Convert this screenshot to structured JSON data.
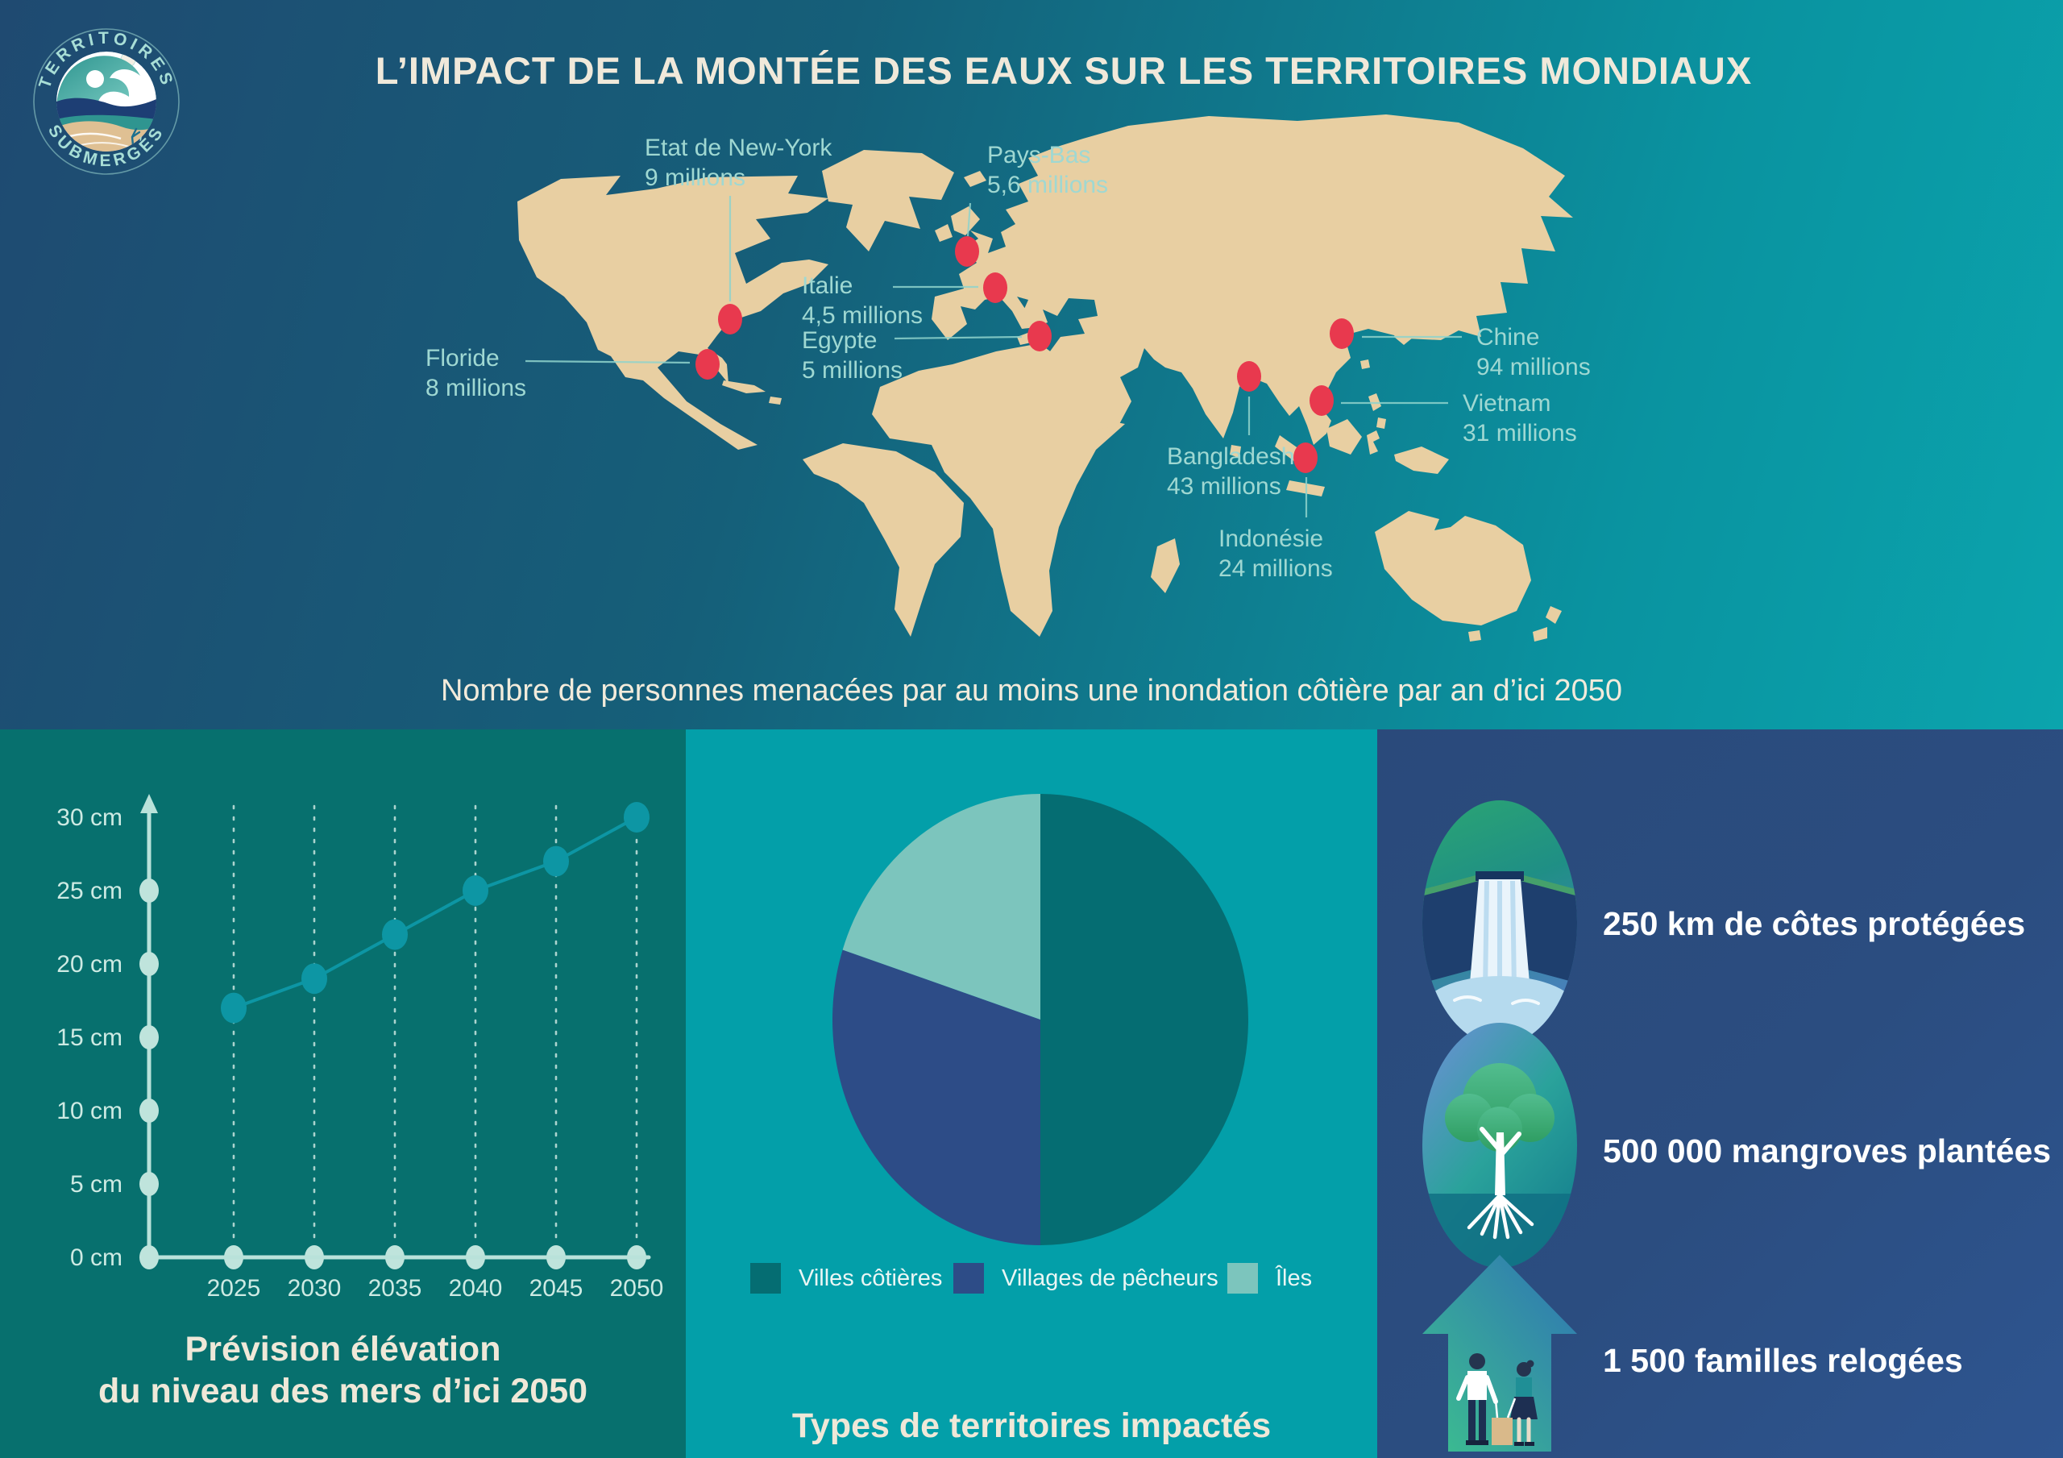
{
  "logo": {
    "arc_top": "TERRITOIRES",
    "arc_bottom": "SUBMERGÉS"
  },
  "header": {
    "title": "L’IMPACT DE LA MONTÉE DES EAUX SUR LES TERRITOIRES MONDIAUX",
    "subtitle": "Nombre de personnes menacées par au moins une inondation côtière par an d’ici 2050"
  },
  "map": {
    "locations": [
      {
        "id": "new-york",
        "name": "Etat de New-York",
        "value": "9 millions"
      },
      {
        "id": "pays-bas",
        "name": "Pays-Bas",
        "value": "5,6 millions"
      },
      {
        "id": "italie",
        "name": "Italie",
        "value": "4,5 millions"
      },
      {
        "id": "egypte",
        "name": "Egypte",
        "value": "5 millions"
      },
      {
        "id": "floride",
        "name": "Floride",
        "value": "8 millions"
      },
      {
        "id": "chine",
        "name": "Chine",
        "value": "94 millions"
      },
      {
        "id": "vietnam",
        "name": "Vietnam",
        "value": "31 millions"
      },
      {
        "id": "bangladesh",
        "name": "Bangladesh",
        "value": "43 millions"
      },
      {
        "id": "indonesie",
        "name": "Indonésie",
        "value": "24 millions"
      }
    ]
  },
  "chart_data": [
    {
      "type": "line",
      "title": "Prévision élévation du niveau des mers d’ici 2050",
      "title_lines": [
        "Prévision élévation",
        "du niveau des mers d’ici 2050"
      ],
      "categories": [
        "2025",
        "2030",
        "2035",
        "2040",
        "2045",
        "2050"
      ],
      "values": [
        17,
        19,
        22,
        25,
        27,
        30
      ],
      "unit": "cm",
      "ylim": [
        0,
        30
      ],
      "ytick_step": 5,
      "ytick_labels": [
        "0 cm",
        "5 cm",
        "10 cm",
        "15 cm",
        "20 cm",
        "25 cm",
        "30 cm"
      ],
      "grid": "dashed-vertical",
      "line_color": "#0d96a4",
      "axis_color": "#b9e2da"
    },
    {
      "type": "pie",
      "title": "Types de territoires impactés",
      "labels": [
        "Villes côtières",
        "Villages de pêcheurs",
        "Îles"
      ],
      "values": [
        50,
        30,
        20
      ],
      "colors": [
        "#056d72",
        "#2d4c87",
        "#7cc5bd"
      ],
      "legend_position": "bottom"
    }
  ],
  "stats": [
    {
      "icon": "dam-icon",
      "label": "250 km de côtes protégées"
    },
    {
      "icon": "mangrove-icon",
      "label": "500 000 mangroves plantées"
    },
    {
      "icon": "house-icon",
      "label": "1 500 familles relogées"
    }
  ],
  "colors": {
    "background_left": "#1f4a71",
    "background_right": "#0ba4ad",
    "land": "#e8cfa2",
    "marker_red": "#e8394e",
    "label_teal": "#9fd8d2",
    "panel_left": "#07706e",
    "panel_middle": "#039fa9",
    "panel_right": "#2b4d80",
    "cream_text": "#f0e9da"
  }
}
